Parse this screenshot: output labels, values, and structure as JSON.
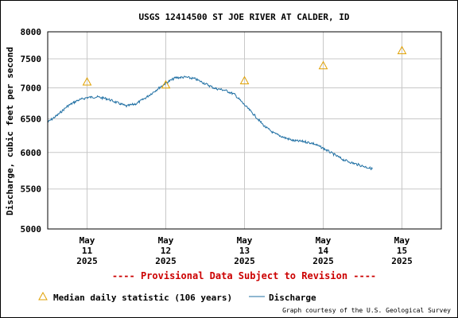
{
  "chart_data": {
    "type": "line",
    "title": "USGS 12414500 ST JOE RIVER AT CALDER, ID",
    "ylabel": "Discharge, cubic feet per second",
    "xlabel": "",
    "y_scale": "log",
    "ylim": [
      5000,
      8000
    ],
    "xlim": [
      "2025-05-10 12:00",
      "2025-05-15 12:00"
    ],
    "y_ticks": [
      "5000",
      "5500",
      "6000",
      "6500",
      "7000",
      "7500",
      "8000"
    ],
    "y_tick_values": [
      5000,
      5500,
      6000,
      6500,
      7000,
      7500,
      8000
    ],
    "x_ticks": [
      {
        "month": "May",
        "day": "11",
        "year": "2025",
        "value": "2025-05-11 00:00"
      },
      {
        "month": "May",
        "day": "12",
        "year": "2025",
        "value": "2025-05-12 00:00"
      },
      {
        "month": "May",
        "day": "13",
        "year": "2025",
        "value": "2025-05-13 00:00"
      },
      {
        "month": "May",
        "day": "14",
        "year": "2025",
        "value": "2025-05-14 00:00"
      },
      {
        "month": "May",
        "day": "15",
        "year": "2025",
        "value": "2025-05-15 00:00"
      }
    ],
    "grid": true,
    "legend_position": "bottom",
    "series": [
      {
        "name": "Discharge",
        "color": "#1f6fa3",
        "points": [
          [
            "2025-05-10 12:00",
            6450
          ],
          [
            "2025-05-10 15:00",
            6560
          ],
          [
            "2025-05-10 18:00",
            6700
          ],
          [
            "2025-05-10 21:00",
            6790
          ],
          [
            "2025-05-11 00:00",
            6840
          ],
          [
            "2025-05-11 03:00",
            6850
          ],
          [
            "2025-05-11 06:00",
            6820
          ],
          [
            "2025-05-11 09:00",
            6760
          ],
          [
            "2025-05-11 12:00",
            6700
          ],
          [
            "2025-05-11 15:00",
            6740
          ],
          [
            "2025-05-11 18:00",
            6840
          ],
          [
            "2025-05-11 21:00",
            6960
          ],
          [
            "2025-05-12 00:00",
            7080
          ],
          [
            "2025-05-12 03:00",
            7170
          ],
          [
            "2025-05-12 06:00",
            7180
          ],
          [
            "2025-05-12 09:00",
            7150
          ],
          [
            "2025-05-12 12:00",
            7070
          ],
          [
            "2025-05-12 15:00",
            6990
          ],
          [
            "2025-05-12 18:00",
            6960
          ],
          [
            "2025-05-12 21:00",
            6890
          ],
          [
            "2025-05-13 00:00",
            6720
          ],
          [
            "2025-05-13 03:00",
            6560
          ],
          [
            "2025-05-13 06:00",
            6390
          ],
          [
            "2025-05-13 09:00",
            6280
          ],
          [
            "2025-05-13 12:00",
            6220
          ],
          [
            "2025-05-13 15:00",
            6170
          ],
          [
            "2025-05-13 18:00",
            6160
          ],
          [
            "2025-05-13 21:00",
            6130
          ],
          [
            "2025-05-14 00:00",
            6060
          ],
          [
            "2025-05-14 03:00",
            5980
          ],
          [
            "2025-05-14 06:00",
            5900
          ],
          [
            "2025-05-14 09:00",
            5850
          ],
          [
            "2025-05-14 12:00",
            5810
          ],
          [
            "2025-05-14 15:00",
            5770
          ]
        ]
      },
      {
        "name": "Median daily statistic (106 years)",
        "color": "#e0a000",
        "marker": "triangle",
        "points": [
          [
            "2025-05-10 24:00",
            7100
          ],
          [
            "2025-05-11 24:00",
            7050
          ],
          [
            "2025-05-12 24:00",
            7120
          ],
          [
            "2025-05-13 24:00",
            7380
          ],
          [
            "2025-05-14 24:00",
            7650
          ]
        ]
      }
    ]
  },
  "provisional_note": "---- Provisional Data Subject to Revision ----",
  "legend": {
    "median_label": "Median daily statistic (106 years)",
    "discharge_label": "Discharge"
  },
  "credit": "Graph courtesy of the U.S. Geological Survey",
  "colors": {
    "discharge": "#1f6fa3",
    "median": "#e0a000",
    "provisional": "#cc0000",
    "grid": "#c8c8c8"
  }
}
